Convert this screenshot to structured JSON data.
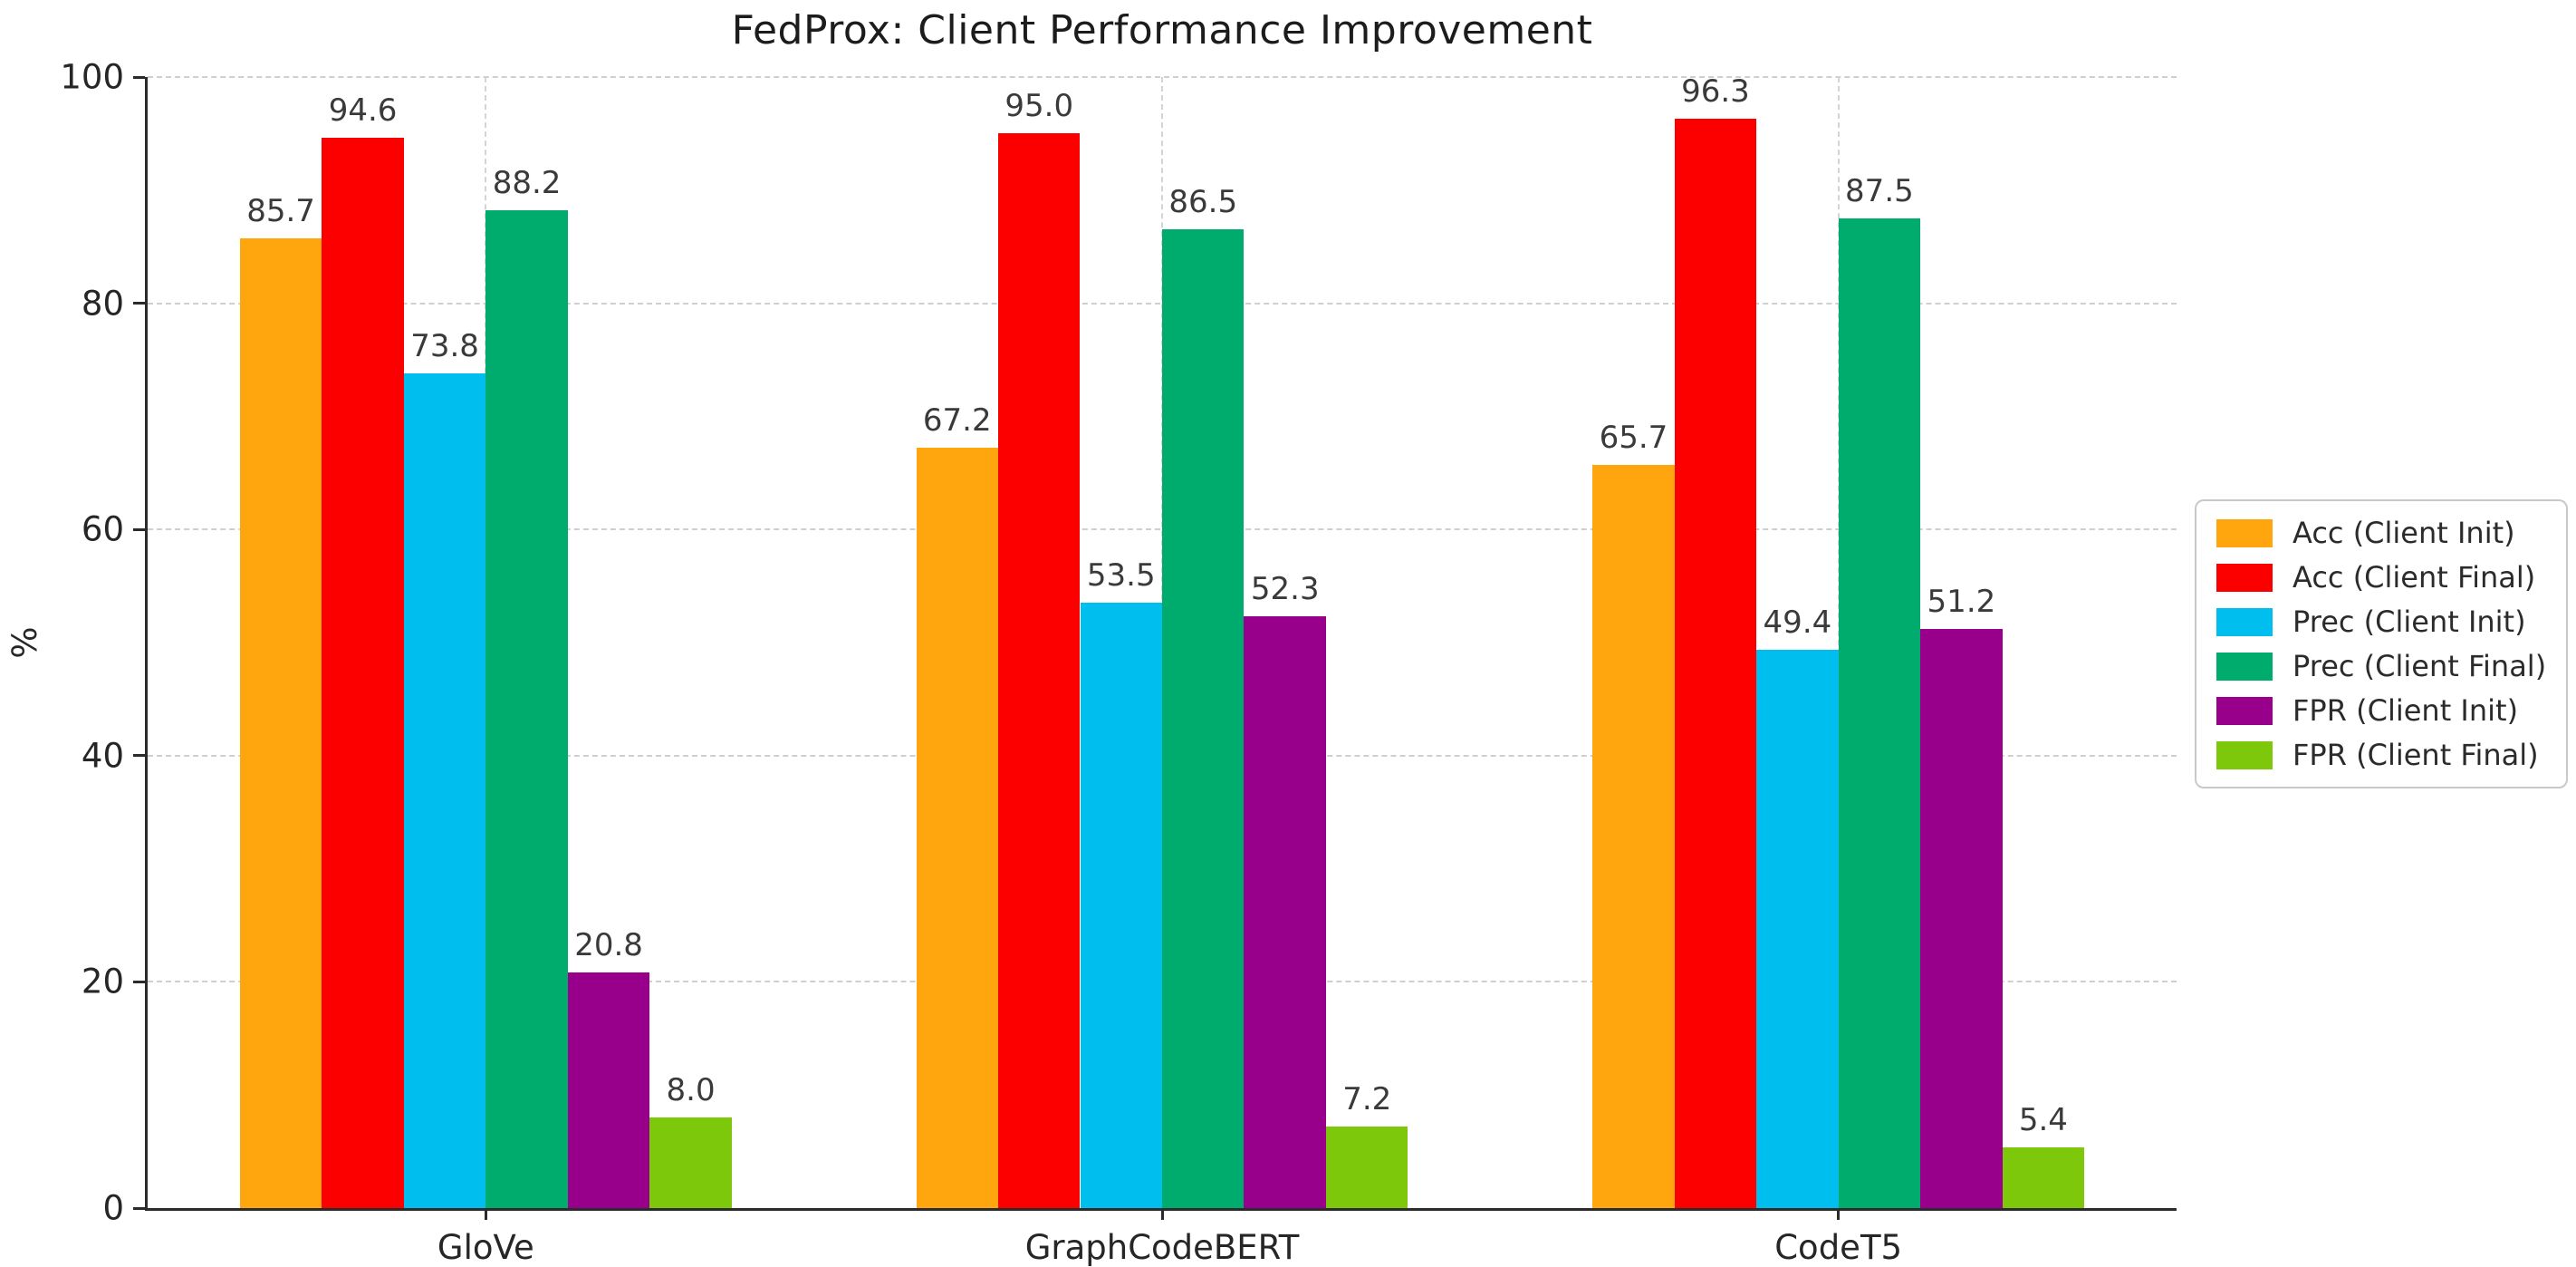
{
  "chart_data": {
    "type": "bar",
    "title": "FedProx: Client Performance Improvement",
    "ylabel": "%",
    "categories": [
      "GloVe",
      "GraphCodeBERT",
      "CodeT5"
    ],
    "series": [
      {
        "name": "Acc (Client Init)",
        "color": "#FFA50D",
        "values": [
          85.7,
          67.2,
          65.7
        ]
      },
      {
        "name": "Acc (Client Final)",
        "color": "#FC0000",
        "values": [
          94.6,
          95.0,
          96.3
        ]
      },
      {
        "name": "Prec (Client Init)",
        "color": "#00BFEF",
        "values": [
          73.8,
          53.5,
          49.4
        ]
      },
      {
        "name": "Prec (Client Final)",
        "color": "#00AB6E",
        "values": [
          88.2,
          86.5,
          87.5
        ]
      },
      {
        "name": "FPR (Client Init)",
        "color": "#98008C",
        "values": [
          20.8,
          52.3,
          51.2
        ]
      },
      {
        "name": "FPR (Client Final)",
        "color": "#7DC80A",
        "values": [
          8.0,
          7.2,
          5.4
        ]
      }
    ],
    "ylim": [
      0,
      100
    ],
    "yticks": [
      0,
      20,
      40,
      60,
      80,
      100
    ],
    "grid": "dashed",
    "legend_position": "right-outside",
    "value_label_decimals": 1
  }
}
